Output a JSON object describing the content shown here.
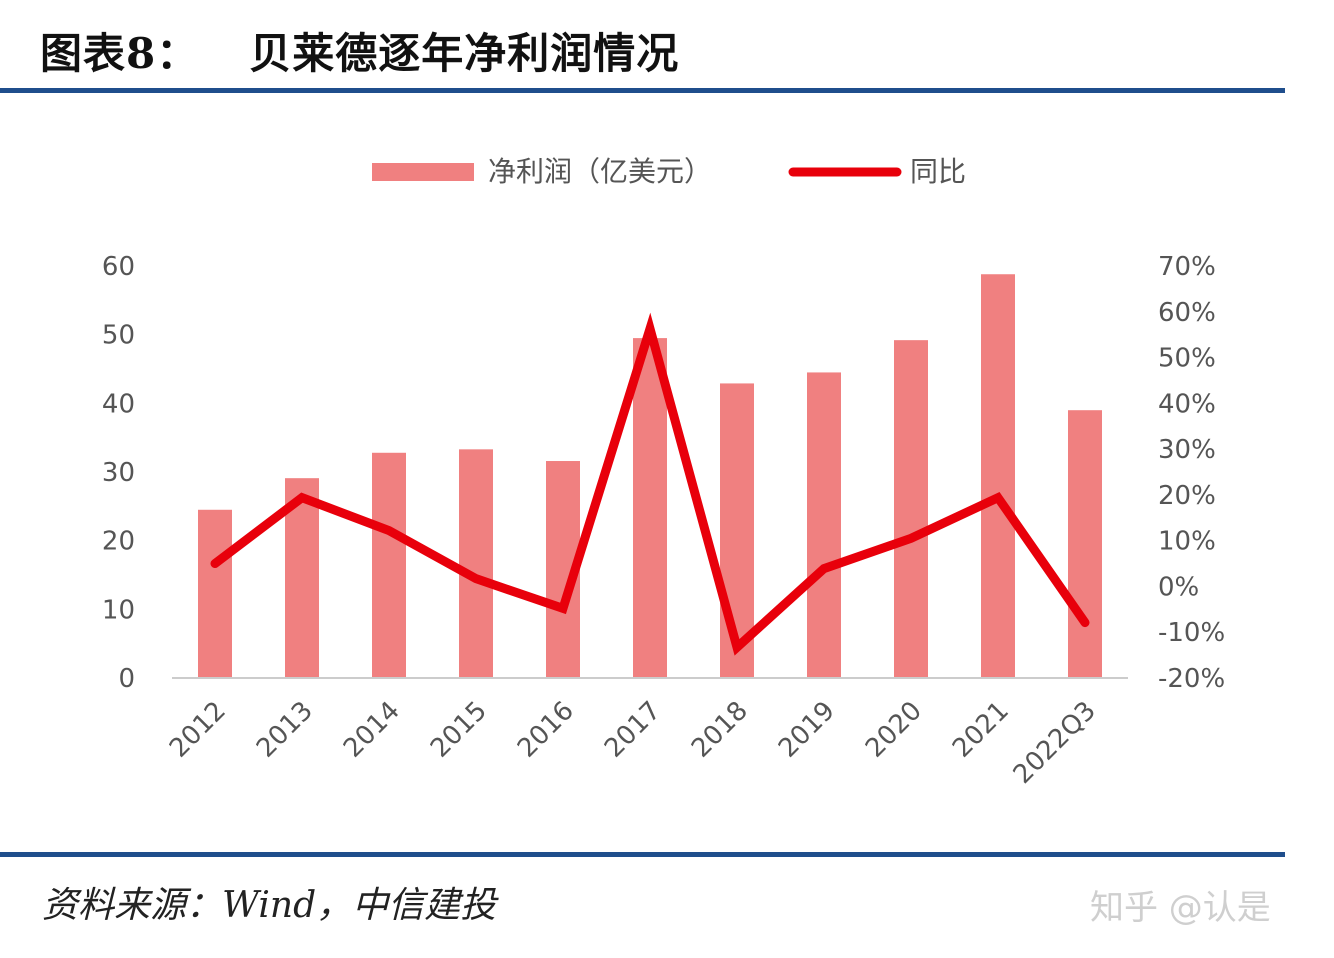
{
  "title": {
    "label": "图表8：",
    "text": "贝莱德逐年净利润情况"
  },
  "source": "资料来源：Wind，中信建投",
  "watermark": "知乎 @认是",
  "colors": {
    "bar": "#f08080",
    "line": "#e8000b",
    "rule": "#1f4e8c"
  },
  "chart_data": {
    "type": "bar+line",
    "categories": [
      "2012",
      "2013",
      "2014",
      "2015",
      "2016",
      "2017",
      "2018",
      "2019",
      "2020",
      "2021",
      "2022Q3"
    ],
    "series": [
      {
        "name": "净利润（亿美元）",
        "type": "bar",
        "axis": "left",
        "values": [
          24.5,
          29.1,
          32.8,
          33.3,
          31.6,
          49.5,
          42.9,
          44.5,
          49.2,
          58.8,
          39.0
        ]
      },
      {
        "name": "同比",
        "type": "line",
        "axis": "right",
        "values": [
          5.0,
          19.4,
          12.2,
          1.7,
          -4.8,
          56.3,
          -13.3,
          3.9,
          10.5,
          19.4,
          -7.9
        ]
      }
    ],
    "y_left": {
      "range": [
        0,
        60
      ],
      "ticks": [
        "0",
        "10",
        "20",
        "30",
        "40",
        "50",
        "60"
      ]
    },
    "y_right": {
      "range": [
        -20,
        70
      ],
      "unit": "%",
      "ticks": [
        "-20%",
        "-10%",
        "0%",
        "10%",
        "20%",
        "30%",
        "40%",
        "50%",
        "60%",
        "70%"
      ]
    },
    "grid": false,
    "legend": "top"
  }
}
